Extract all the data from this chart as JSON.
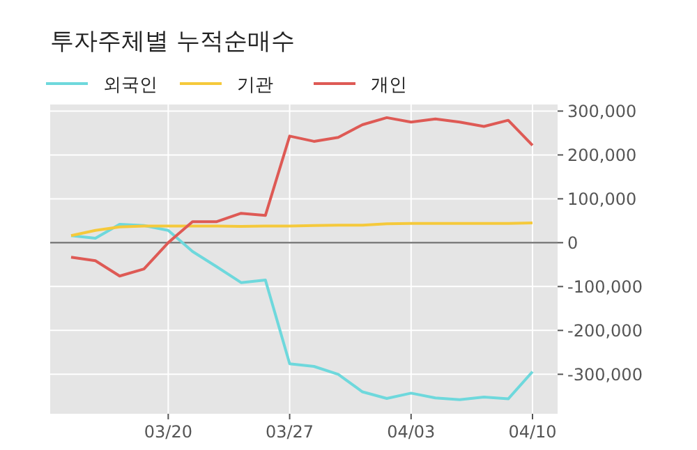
{
  "chart_data": {
    "type": "line",
    "title": "투자주체별 누적순매수",
    "categories": [
      null,
      null,
      null,
      null,
      "03/20",
      null,
      null,
      null,
      null,
      "03/27",
      null,
      null,
      null,
      null,
      "04/03",
      null,
      null,
      null,
      null,
      "04/10"
    ],
    "series": [
      {
        "name": "외국인",
        "color": "#6ed8dc",
        "values": [
          16000,
          10000,
          42000,
          39000,
          28000,
          -20000,
          -55000,
          -91000,
          -85000,
          -276000,
          -282000,
          -300000,
          -340000,
          -355000,
          -343000,
          -354000,
          -358000,
          -352000,
          -356000,
          -294000
        ]
      },
      {
        "name": "기관",
        "color": "#f5c93b",
        "values": [
          16000,
          28000,
          36000,
          38000,
          38000,
          38000,
          38000,
          37000,
          38000,
          38000,
          39000,
          40000,
          40000,
          43000,
          44000,
          44000,
          44000,
          44000,
          44000,
          45000
        ]
      },
      {
        "name": "개인",
        "color": "#de5a55",
        "values": [
          -33000,
          -41000,
          -76000,
          -60000,
          0,
          48000,
          48000,
          67000,
          62000,
          243000,
          231000,
          240000,
          269000,
          285000,
          275000,
          282000,
          275000,
          265000,
          279000,
          222000
        ]
      }
    ],
    "ylim": [
      -390000,
      315000
    ],
    "yticks": [
      {
        "value": 300000,
        "label": "300,000"
      },
      {
        "value": 200000,
        "label": "200,000"
      },
      {
        "value": 100000,
        "label": "100,000"
      },
      0,
      {
        "value": -100000,
        "label": "-100,000"
      },
      {
        "value": -200000,
        "label": "-200,000"
      },
      {
        "value": -300000,
        "label": "-300,000"
      }
    ],
    "ref_lines": [
      {
        "axis": "y",
        "value": 0,
        "color": "#707070"
      }
    ],
    "grid": true,
    "legend": "top left",
    "line_style": "solid",
    "marker": "none"
  }
}
